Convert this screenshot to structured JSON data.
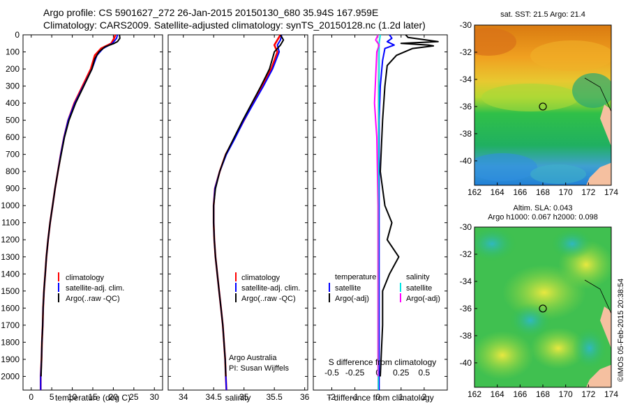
{
  "header": {
    "title_line1": "Argo profile: CS 5901627_272 26-Jan-2015 20150130_680 35.94S 167.959E",
    "title_line2": "Climatology: CARS2009. Satellite-adjusted climatology: synTS_20150128.nc (1.2d later)"
  },
  "colors": {
    "climatology": "#ff0000",
    "satellite": "#0000ff",
    "argo": "#000000",
    "sal_satellite": "#00e5e5",
    "sal_argo": "#ff00ff"
  },
  "depth_axis": {
    "ticks": [
      "0",
      "100",
      "200",
      "300",
      "400",
      "500",
      "600",
      "700",
      "800",
      "900",
      "1000",
      "1100",
      "1200",
      "1300",
      "1400",
      "1500",
      "1600",
      "1700",
      "1800",
      "1900",
      "2000"
    ],
    "ylim": [
      0,
      2080
    ],
    "reversed": true
  },
  "chart_data": [
    {
      "type": "line",
      "name": "temperature",
      "xlabel": "temperature (deg C)",
      "xticks": [
        "0",
        "5",
        "10",
        "15",
        "20",
        "25",
        "30"
      ],
      "xlim": [
        -2,
        32
      ],
      "legend": [
        "climatology",
        "satellite-adj. clim.",
        "Argo(..raw -QC)"
      ],
      "series": [
        {
          "name": "climatology",
          "points": [
            [
              20.5,
              0
            ],
            [
              20.2,
              20
            ],
            [
              19.5,
              50
            ],
            [
              17,
              80
            ],
            [
              15.5,
              120
            ],
            [
              14.5,
              200
            ],
            [
              12.5,
              300
            ],
            [
              10.5,
              400
            ],
            [
              9,
              500
            ],
            [
              8,
              600
            ],
            [
              7.2,
              700
            ],
            [
              6.5,
              800
            ],
            [
              5.8,
              900
            ],
            [
              5.2,
              1000
            ],
            [
              4.6,
              1100
            ],
            [
              4.1,
              1200
            ],
            [
              3.7,
              1300
            ],
            [
              3.4,
              1400
            ],
            [
              3.1,
              1500
            ],
            [
              2.9,
              1600
            ],
            [
              2.8,
              1700
            ],
            [
              2.6,
              1800
            ],
            [
              2.5,
              1900
            ],
            [
              2.3,
              2000
            ],
            [
              2.3,
              2080
            ]
          ]
        },
        {
          "name": "satellite-adj. clim.",
          "points": [
            [
              21,
              0
            ],
            [
              20.8,
              20
            ],
            [
              19.8,
              50
            ],
            [
              17.5,
              80
            ],
            [
              16,
              120
            ],
            [
              14.8,
              200
            ],
            [
              12.7,
              300
            ],
            [
              10.6,
              400
            ],
            [
              9,
              500
            ],
            [
              8,
              600
            ],
            [
              7.2,
              700
            ],
            [
              6.5,
              800
            ],
            [
              5.8,
              900
            ],
            [
              5.2,
              1000
            ],
            [
              4.6,
              1100
            ],
            [
              4.1,
              1200
            ],
            [
              3.7,
              1300
            ],
            [
              3.4,
              1400
            ],
            [
              3.1,
              1500
            ],
            [
              2.9,
              1600
            ],
            [
              2.8,
              1700
            ],
            [
              2.6,
              1800
            ],
            [
              2.5,
              1900
            ],
            [
              2.3,
              2000
            ],
            [
              2.3,
              2080
            ]
          ]
        },
        {
          "name": "Argo(..raw -QC)",
          "points": [
            [
              21.5,
              0
            ],
            [
              21.6,
              20
            ],
            [
              21,
              40
            ],
            [
              20.2,
              50
            ],
            [
              18,
              70
            ],
            [
              16.5,
              100
            ],
            [
              15.5,
              140
            ],
            [
              14.8,
              200
            ],
            [
              12.8,
              300
            ],
            [
              10.8,
              400
            ],
            [
              9.2,
              500
            ],
            [
              8.1,
              600
            ],
            [
              7.3,
              700
            ],
            [
              6.5,
              800
            ],
            [
              5.8,
              900
            ],
            [
              5.2,
              1000
            ],
            [
              4.6,
              1100
            ],
            [
              4.1,
              1200
            ],
            [
              3.7,
              1300
            ],
            [
              3.4,
              1400
            ],
            [
              3.1,
              1500
            ],
            [
              2.9,
              1600
            ],
            [
              2.8,
              1700
            ],
            [
              2.6,
              1800
            ],
            [
              2.5,
              1900
            ],
            [
              2.4,
              2000
            ]
          ]
        }
      ]
    },
    {
      "type": "line",
      "name": "salinity",
      "xlabel": "salinity",
      "xticks": [
        "34",
        "34.5",
        "35",
        "35.5",
        "36"
      ],
      "xlim": [
        33.75,
        36.05
      ],
      "legend": [
        "climatology",
        "satellite-adj. clim.",
        "Argo(..raw -QC)"
      ],
      "annotation_line1": "Argo Australia",
      "annotation_line2": "PI: Susan Wijffels",
      "series": [
        {
          "name": "climatology",
          "points": [
            [
              35.6,
              0
            ],
            [
              35.55,
              30
            ],
            [
              35.5,
              60
            ],
            [
              35.55,
              100
            ],
            [
              35.45,
              200
            ],
            [
              35.3,
              300
            ],
            [
              35.15,
              400
            ],
            [
              35,
              500
            ],
            [
              34.85,
              600
            ],
            [
              34.7,
              700
            ],
            [
              34.6,
              800
            ],
            [
              34.52,
              900
            ],
            [
              34.5,
              1000
            ],
            [
              34.5,
              1100
            ],
            [
              34.51,
              1200
            ],
            [
              34.53,
              1300
            ],
            [
              34.56,
              1400
            ],
            [
              34.59,
              1500
            ],
            [
              34.62,
              1600
            ],
            [
              34.65,
              1700
            ],
            [
              34.67,
              1800
            ],
            [
              34.69,
              1900
            ],
            [
              34.7,
              2000
            ],
            [
              34.71,
              2080
            ]
          ]
        },
        {
          "name": "satellite-adj. clim.",
          "points": [
            [
              35.62,
              0
            ],
            [
              35.6,
              30
            ],
            [
              35.55,
              60
            ],
            [
              35.58,
              100
            ],
            [
              35.47,
              200
            ],
            [
              35.32,
              300
            ],
            [
              35.16,
              400
            ],
            [
              35,
              500
            ],
            [
              34.86,
              600
            ],
            [
              34.71,
              700
            ],
            [
              34.6,
              800
            ],
            [
              34.52,
              900
            ],
            [
              34.5,
              1000
            ],
            [
              34.5,
              1100
            ],
            [
              34.51,
              1200
            ],
            [
              34.53,
              1300
            ],
            [
              34.56,
              1400
            ],
            [
              34.59,
              1500
            ],
            [
              34.62,
              1600
            ],
            [
              34.65,
              1700
            ],
            [
              34.67,
              1800
            ],
            [
              34.69,
              1900
            ],
            [
              34.7,
              2000
            ],
            [
              34.71,
              2080
            ]
          ]
        },
        {
          "name": "Argo(..raw -QC)",
          "points": [
            [
              35.6,
              0
            ],
            [
              35.65,
              30
            ],
            [
              35.6,
              60
            ],
            [
              35.5,
              100
            ],
            [
              35.42,
              200
            ],
            [
              35.28,
              300
            ],
            [
              35.13,
              400
            ],
            [
              34.98,
              500
            ],
            [
              34.84,
              600
            ],
            [
              34.7,
              700
            ],
            [
              34.6,
              800
            ],
            [
              34.53,
              900
            ],
            [
              34.5,
              1000
            ],
            [
              34.5,
              1100
            ],
            [
              34.51,
              1200
            ],
            [
              34.53,
              1300
            ],
            [
              34.56,
              1400
            ],
            [
              34.59,
              1500
            ],
            [
              34.62,
              1600
            ],
            [
              34.65,
              1700
            ],
            [
              34.67,
              1800
            ],
            [
              34.69,
              1900
            ],
            [
              34.7,
              2000
            ]
          ]
        }
      ]
    },
    {
      "type": "line",
      "name": "difference",
      "xlabel": "T difference from climatology",
      "xlabel_top": "S difference from climatology",
      "xticks": [
        "-2",
        "-1",
        "0",
        "1",
        "2"
      ],
      "xticks_s": [
        "-0.5",
        "-0.25",
        "0",
        "0.25",
        "0.5"
      ],
      "xlim": [
        -2.8,
        3.0
      ],
      "legend_temp_title": "temperature",
      "legend_sal_title": "salinity",
      "legend_temp": [
        "satellite",
        "Argo(-adj)"
      ],
      "legend_sal": [
        "satellite",
        "Argo(-adj)"
      ],
      "series": [
        {
          "name": "T satellite",
          "points": [
            [
              0.5,
              0
            ],
            [
              0.6,
              20
            ],
            [
              0.4,
              40
            ],
            [
              0.7,
              60
            ],
            [
              0.3,
              80
            ],
            [
              0.2,
              150
            ],
            [
              0.1,
              300
            ],
            [
              0.05,
              500
            ],
            [
              0.05,
              2080
            ]
          ]
        },
        {
          "name": "T Argo(-adj)",
          "points": [
            [
              1.2,
              0
            ],
            [
              1.3,
              15
            ],
            [
              2.6,
              40
            ],
            [
              1.0,
              50
            ],
            [
              2.2,
              60
            ],
            [
              2.4,
              65
            ],
            [
              1.5,
              80
            ],
            [
              0.8,
              120
            ],
            [
              0.4,
              180
            ],
            [
              0.3,
              300
            ],
            [
              0.2,
              500
            ],
            [
              0.1,
              800
            ],
            [
              0.3,
              1000
            ],
            [
              0.6,
              1100
            ],
            [
              0.4,
              1200
            ],
            [
              0.9,
              1300
            ],
            [
              0.5,
              1400
            ],
            [
              0.2,
              1500
            ],
            [
              0.2,
              1700
            ],
            [
              0.1,
              2000
            ]
          ]
        },
        {
          "name": "S satellite",
          "points": [
            [
              0.1,
              0
            ],
            [
              0.05,
              50
            ],
            [
              0.05,
              100
            ],
            [
              0.05,
              200
            ],
            [
              0.03,
              500
            ],
            [
              0.02,
              1000
            ],
            [
              0.01,
              2080
            ]
          ]
        },
        {
          "name": "S Argo(-adj)",
          "points": [
            [
              0,
              0
            ],
            [
              -0.1,
              30
            ],
            [
              0.05,
              60
            ],
            [
              -0.05,
              100
            ],
            [
              -0.15,
              400
            ],
            [
              -0.05,
              600
            ],
            [
              0,
              1000
            ],
            [
              0,
              1500
            ],
            [
              0,
              2000
            ]
          ]
        }
      ]
    }
  ],
  "maps": [
    {
      "title": "sat. SST: 21.5 Argo: 21.4",
      "xticks": [
        "162",
        "164",
        "166",
        "168",
        "170",
        "172",
        "174"
      ],
      "yticks": [
        "-30",
        "-32",
        "-34",
        "-36",
        "-38",
        "-40"
      ],
      "lon_range": [
        162,
        174
      ],
      "lat_range": [
        -41.8,
        -30
      ],
      "marker": {
        "lon": 168,
        "lat": -36
      },
      "palette": "sst"
    },
    {
      "title_line1": "Altim. SLA: 0.043",
      "title_line2": "Argo h1000: 0.067 h2000: 0.098",
      "xticks": [
        "162",
        "164",
        "166",
        "168",
        "170",
        "172",
        "174"
      ],
      "yticks": [
        "-30",
        "-32",
        "-34",
        "-36",
        "-38",
        "-40"
      ],
      "lon_range": [
        162,
        174
      ],
      "lat_range": [
        -41.8,
        -30
      ],
      "marker": {
        "lon": 168,
        "lat": -36
      },
      "palette": "sla"
    }
  ],
  "credit": "©IMOS 05-Feb-2015 20:38:54"
}
